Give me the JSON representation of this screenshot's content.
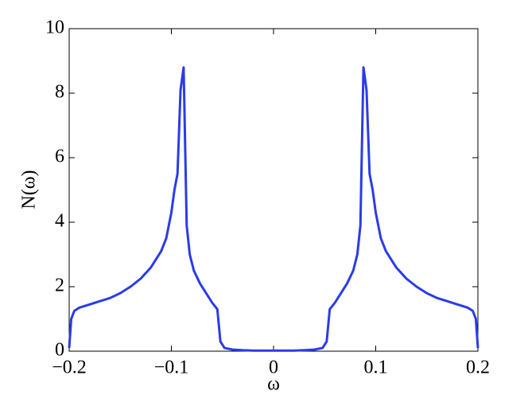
{
  "chart_data": {
    "type": "line",
    "xlabel": "ω",
    "ylabel": "N(ω)",
    "x": [
      -0.2,
      -0.198,
      -0.195,
      -0.19,
      -0.18,
      -0.17,
      -0.16,
      -0.15,
      -0.14,
      -0.13,
      -0.12,
      -0.11,
      -0.105,
      -0.1,
      -0.097,
      -0.094,
      -0.091,
      -0.088,
      -0.085,
      -0.082,
      -0.078,
      -0.072,
      -0.066,
      -0.06,
      -0.055,
      -0.052,
      -0.048,
      -0.04,
      -0.03,
      -0.02,
      -0.01,
      0,
      0.01,
      0.02,
      0.03,
      0.04,
      0.048,
      0.052,
      0.055,
      0.06,
      0.066,
      0.072,
      0.078,
      0.082,
      0.085,
      0.088,
      0.091,
      0.094,
      0.097,
      0.1,
      0.105,
      0.11,
      0.12,
      0.13,
      0.14,
      0.15,
      0.16,
      0.17,
      0.18,
      0.19,
      0.195,
      0.198,
      0.2
    ],
    "values": [
      0.1,
      1.0,
      1.25,
      1.35,
      1.45,
      1.55,
      1.65,
      1.8,
      2.0,
      2.25,
      2.6,
      3.1,
      3.5,
      4.3,
      5.0,
      5.5,
      8.1,
      8.8,
      3.9,
      3.0,
      2.5,
      2.1,
      1.8,
      1.5,
      1.3,
      0.3,
      0.1,
      0.05,
      0.03,
      0.02,
      0.02,
      0.02,
      0.02,
      0.02,
      0.03,
      0.05,
      0.1,
      0.3,
      1.3,
      1.5,
      1.8,
      2.1,
      2.5,
      3.0,
      3.9,
      8.8,
      8.1,
      5.5,
      5.0,
      4.3,
      3.5,
      3.1,
      2.6,
      2.25,
      2.0,
      1.8,
      1.65,
      1.55,
      1.45,
      1.35,
      1.25,
      1.0,
      0.1
    ],
    "color": "#2b3be8",
    "xlim": [
      -0.2,
      0.2
    ],
    "xticks": [
      {
        "value": -0.2,
        "label": "−0.2"
      },
      {
        "value": -0.1,
        "label": "−0.1"
      },
      0,
      0.1,
      0.2
    ],
    "ylim": [
      0,
      10
    ],
    "yticks": [
      0,
      2,
      4,
      6,
      8,
      10
    ]
  }
}
